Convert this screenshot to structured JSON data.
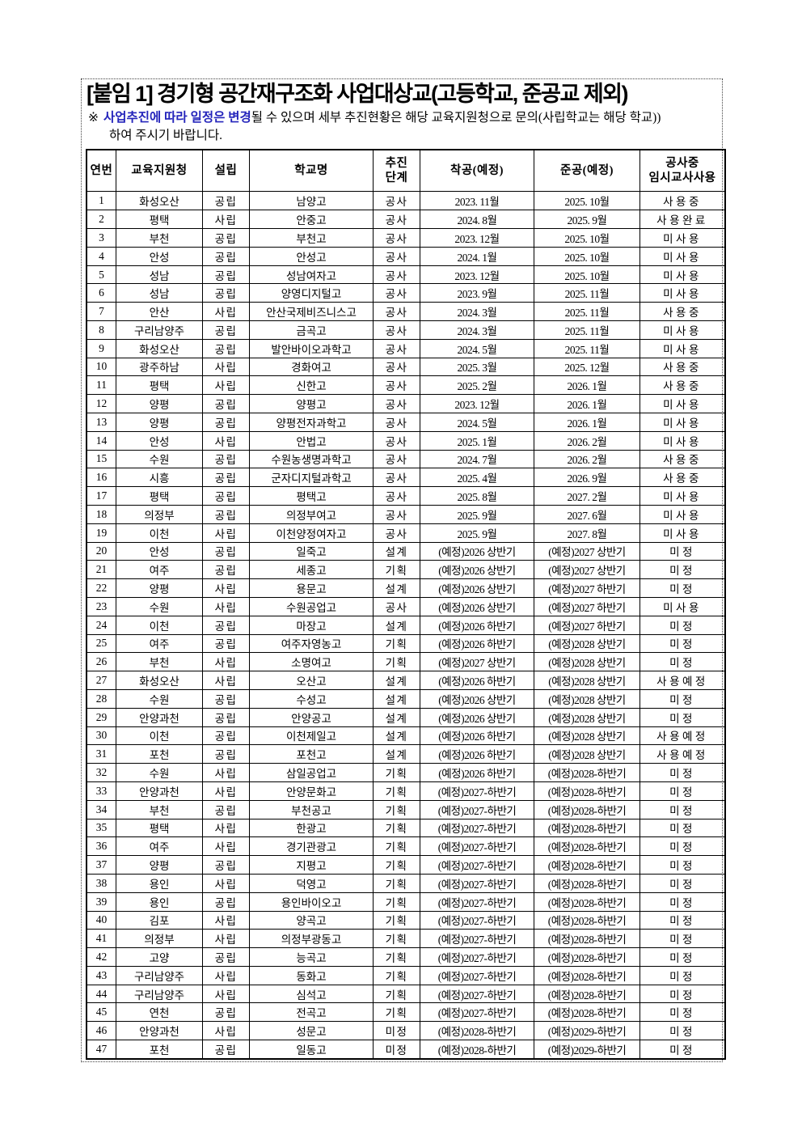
{
  "title": "[붙임 1] 경기형 공간재구조화 사업대상교(고등학교, 준공교 제외)",
  "note": {
    "marker": "※",
    "highlight": "사업추진에 따라 일정은 변경",
    "text": "될 수 있으며 세부 추진현황은 해당 교육지원청으로 문의(사립학교는 해당 학교))",
    "text2": "하여 주시기 바랍니다."
  },
  "colors": {
    "note_highlight_blue": "#2424bb",
    "table_border": "#000000",
    "text": "#000000"
  },
  "table": {
    "headers": [
      "연번",
      "교육지원청",
      "설립",
      "학교명",
      "추진\n단계",
      "착공(예정)",
      "준공(예정)",
      "공사중\n임시교사사용"
    ],
    "rows": [
      [
        "1",
        "화성오산",
        "공립",
        "남양고",
        "공사",
        "2023. 11월",
        "2025. 10월",
        "사용중"
      ],
      [
        "2",
        "평택",
        "사립",
        "안중고",
        "공사",
        "2024. 8월",
        "2025. 9월",
        "사용완료"
      ],
      [
        "3",
        "부천",
        "공립",
        "부천고",
        "공사",
        "2023. 12월",
        "2025. 10월",
        "미사용"
      ],
      [
        "4",
        "안성",
        "공립",
        "안성고",
        "공사",
        "2024. 1월",
        "2025. 10월",
        "미사용"
      ],
      [
        "5",
        "성남",
        "공립",
        "성남여자고",
        "공사",
        "2023. 12월",
        "2025. 10월",
        "미사용"
      ],
      [
        "6",
        "성남",
        "공립",
        "양영디지털고",
        "공사",
        "2023. 9월",
        "2025. 11월",
        "미사용"
      ],
      [
        "7",
        "안산",
        "사립",
        "안산국제비즈니스고",
        "공사",
        "2024. 3월",
        "2025. 11월",
        "사용중"
      ],
      [
        "8",
        "구리남양주",
        "공립",
        "금곡고",
        "공사",
        "2024. 3월",
        "2025. 11월",
        "미사용"
      ],
      [
        "9",
        "화성오산",
        "공립",
        "발안바이오과학고",
        "공사",
        "2024. 5월",
        "2025. 11월",
        "미사용"
      ],
      [
        "10",
        "광주하남",
        "사립",
        "경화여고",
        "공사",
        "2025. 3월",
        "2025. 12월",
        "사용중"
      ],
      [
        "11",
        "평택",
        "사립",
        "신한고",
        "공사",
        "2025. 2월",
        "2026. 1월",
        "사용중"
      ],
      [
        "12",
        "양평",
        "공립",
        "양평고",
        "공사",
        "2023. 12월",
        "2026. 1월",
        "미사용"
      ],
      [
        "13",
        "양평",
        "공립",
        "양평전자과학고",
        "공사",
        "2024. 5월",
        "2026. 1월",
        "미사용"
      ],
      [
        "14",
        "안성",
        "사립",
        "안법고",
        "공사",
        "2025. 1월",
        "2026. 2월",
        "미사용"
      ],
      [
        "15",
        "수원",
        "공립",
        "수원농생명과학고",
        "공사",
        "2024. 7월",
        "2026. 2월",
        "사용중"
      ],
      [
        "16",
        "시흥",
        "공립",
        "군자디지털과학고",
        "공사",
        "2025. 4월",
        "2026. 9월",
        "사용중"
      ],
      [
        "17",
        "평택",
        "공립",
        "평택고",
        "공사",
        "2025. 8월",
        "2027. 2월",
        "미사용"
      ],
      [
        "18",
        "의정부",
        "공립",
        "의정부여고",
        "공사",
        "2025. 9월",
        "2027. 6월",
        "미사용"
      ],
      [
        "19",
        "이천",
        "사립",
        "이천양정여자고",
        "공사",
        "2025. 9월",
        "2027. 8월",
        "미사용"
      ],
      [
        "20",
        "안성",
        "공립",
        "일죽고",
        "설계",
        "(예정)2026 상반기",
        "(예정)2027 상반기",
        "미정"
      ],
      [
        "21",
        "여주",
        "공립",
        "세종고",
        "기획",
        "(예정)2026 상반기",
        "(예정)2027 상반기",
        "미정"
      ],
      [
        "22",
        "양평",
        "사립",
        "용문고",
        "설계",
        "(예정)2026 상반기",
        "(예정)2027 하반기",
        "미정"
      ],
      [
        "23",
        "수원",
        "사립",
        "수원공업고",
        "공사",
        "(예정)2026 상반기",
        "(예정)2027 하반기",
        "미사용"
      ],
      [
        "24",
        "이천",
        "공립",
        "마장고",
        "설계",
        "(예정)2026 하반기",
        "(예정)2027 하반기",
        "미정"
      ],
      [
        "25",
        "여주",
        "공립",
        "여주자영농고",
        "기획",
        "(예정)2026 하반기",
        "(예정)2028 상반기",
        "미정"
      ],
      [
        "26",
        "부천",
        "사립",
        "소명여고",
        "기획",
        "(예정)2027 상반기",
        "(예정)2028 상반기",
        "미정"
      ],
      [
        "27",
        "화성오산",
        "사립",
        "오산고",
        "설계",
        "(예정)2026 하반기",
        "(예정)2028 상반기",
        "사용예정"
      ],
      [
        "28",
        "수원",
        "공립",
        "수성고",
        "설계",
        "(예정)2026 상반기",
        "(예정)2028 상반기",
        "미정"
      ],
      [
        "29",
        "안양과천",
        "공립",
        "안양공고",
        "설계",
        "(예정)2026 상반기",
        "(예정)2028 상반기",
        "미정"
      ],
      [
        "30",
        "이천",
        "공립",
        "이천제일고",
        "설계",
        "(예정)2026 하반기",
        "(예정)2028 상반기",
        "사용예정"
      ],
      [
        "31",
        "포천",
        "공립",
        "포천고",
        "설계",
        "(예정)2026 하반기",
        "(예정)2028 상반기",
        "사용예정"
      ],
      [
        "32",
        "수원",
        "사립",
        "삼일공업고",
        "기획",
        "(예정)2026 하반기",
        "(예정)2028-하반기",
        "미정"
      ],
      [
        "33",
        "안양과천",
        "사립",
        "안양문화고",
        "기획",
        "(예정)2027-하반기",
        "(예정)2028-하반기",
        "미정"
      ],
      [
        "34",
        "부천",
        "공립",
        "부천공고",
        "기획",
        "(예정)2027-하반기",
        "(예정)2028-하반기",
        "미정"
      ],
      [
        "35",
        "평택",
        "사립",
        "한광고",
        "기획",
        "(예정)2027-하반기",
        "(예정)2028-하반기",
        "미정"
      ],
      [
        "36",
        "여주",
        "사립",
        "경기관광고",
        "기획",
        "(예정)2027-하반기",
        "(예정)2028-하반기",
        "미정"
      ],
      [
        "37",
        "양평",
        "공립",
        "지평고",
        "기획",
        "(예정)2027-하반기",
        "(예정)2028-하반기",
        "미정"
      ],
      [
        "38",
        "용인",
        "사립",
        "덕영고",
        "기획",
        "(예정)2027-하반기",
        "(예정)2028-하반기",
        "미정"
      ],
      [
        "39",
        "용인",
        "공립",
        "용인바이오고",
        "기획",
        "(예정)2027-하반기",
        "(예정)2028-하반기",
        "미정"
      ],
      [
        "40",
        "김포",
        "사립",
        "양곡고",
        "기획",
        "(예정)2027-하반기",
        "(예정)2028-하반기",
        "미정"
      ],
      [
        "41",
        "의정부",
        "사립",
        "의정부광동고",
        "기획",
        "(예정)2027-하반기",
        "(예정)2028-하반기",
        "미정"
      ],
      [
        "42",
        "고양",
        "공립",
        "능곡고",
        "기획",
        "(예정)2027-하반기",
        "(예정)2028-하반기",
        "미정"
      ],
      [
        "43",
        "구리남양주",
        "사립",
        "동화고",
        "기획",
        "(예정)2027-하반기",
        "(예정)2028-하반기",
        "미정"
      ],
      [
        "44",
        "구리남양주",
        "사립",
        "심석고",
        "기획",
        "(예정)2027-하반기",
        "(예정)2028-하반기",
        "미정"
      ],
      [
        "45",
        "연천",
        "공립",
        "전곡고",
        "기획",
        "(예정)2027-하반기",
        "(예정)2028-하반기",
        "미정"
      ],
      [
        "46",
        "안양과천",
        "사립",
        "성문고",
        "미정",
        "(예정)2028-하반기",
        "(예정)2029-하반기",
        "미정"
      ],
      [
        "47",
        "포천",
        "공립",
        "일동고",
        "미정",
        "(예정)2028-하반기",
        "(예정)2029-하반기",
        "미정"
      ]
    ]
  }
}
